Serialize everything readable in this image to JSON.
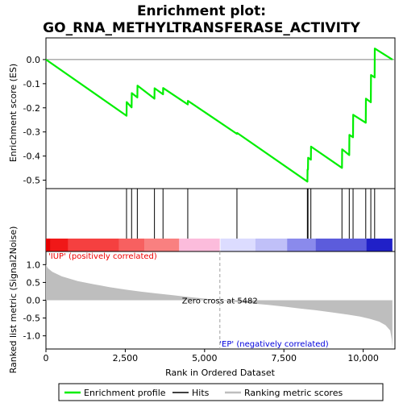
{
  "chart_data": {
    "type": "line",
    "title_line1": "Enrichment plot:",
    "title_line2": "GO_RNA_METHYLTRANSFERASE_ACTIVITY",
    "xlabel": "Rank in Ordered Dataset",
    "xlim": [
      0,
      11000
    ],
    "x_ticks": [
      0,
      2500,
      5000,
      7500,
      10000
    ],
    "x_tick_labels": [
      "0",
      "2,500",
      "5,000",
      "7,500",
      "10,000"
    ],
    "es_panel": {
      "ylabel": "Enrichment score (ES)",
      "ylim": [
        -0.535,
        0.09
      ],
      "y_ticks": [
        0.0,
        -0.1,
        -0.2,
        -0.3,
        -0.4,
        -0.5
      ],
      "y_tick_labels": [
        "0.0",
        "-0.1",
        "-0.2",
        "-0.3",
        "-0.4",
        "-0.5"
      ],
      "color": "#00ee00",
      "profile": [
        [
          0,
          0.0
        ],
        [
          2540,
          -0.233
        ],
        [
          2545,
          -0.176
        ],
        [
          2700,
          -0.198
        ],
        [
          2705,
          -0.139
        ],
        [
          2880,
          -0.157
        ],
        [
          2885,
          -0.108
        ],
        [
          3420,
          -0.162
        ],
        [
          3425,
          -0.119
        ],
        [
          3690,
          -0.144
        ],
        [
          3695,
          -0.118
        ],
        [
          4470,
          -0.186
        ],
        [
          4475,
          -0.171
        ],
        [
          6020,
          -0.308
        ],
        [
          6025,
          -0.304
        ],
        [
          8240,
          -0.506
        ],
        [
          8245,
          -0.456
        ],
        [
          8260,
          -0.456
        ],
        [
          8265,
          -0.407
        ],
        [
          8350,
          -0.415
        ],
        [
          8355,
          -0.361
        ],
        [
          9330,
          -0.449
        ],
        [
          9335,
          -0.372
        ],
        [
          9560,
          -0.396
        ],
        [
          9565,
          -0.312
        ],
        [
          9680,
          -0.322
        ],
        [
          9685,
          -0.229
        ],
        [
          10080,
          -0.262
        ],
        [
          10085,
          -0.162
        ],
        [
          10240,
          -0.177
        ],
        [
          10245,
          -0.064
        ],
        [
          10360,
          -0.074
        ],
        [
          10365,
          0.046
        ],
        [
          10920,
          0.0
        ]
      ]
    },
    "hits": [
      2540,
      2700,
      2880,
      3420,
      3690,
      4470,
      6020,
      8240,
      8260,
      8350,
      9330,
      9560,
      9680,
      10080,
      10240,
      10360
    ],
    "heatmap_stops": [
      {
        "rank": 0,
        "color": "#e60000"
      },
      {
        "rank": 150,
        "color": "#f01818"
      },
      {
        "rank": 700,
        "color": "#f54040"
      },
      {
        "rank": 2300,
        "color": "#f76060"
      },
      {
        "rank": 3100,
        "color": "#f98080"
      },
      {
        "rank": 4200,
        "color": "#fcbcdc"
      },
      {
        "rank": 5482,
        "color": "#ffffff"
      },
      {
        "rank": 5500,
        "color": "#dcdcff"
      },
      {
        "rank": 6600,
        "color": "#c0c0f8"
      },
      {
        "rank": 7600,
        "color": "#8a8aec"
      },
      {
        "rank": 8500,
        "color": "#5c5cdc"
      },
      {
        "rank": 10100,
        "color": "#2020c8"
      },
      {
        "rank": 10920,
        "color": "#0a0ab4"
      }
    ],
    "metric_panel": {
      "ylabel": "Ranked list metric (Signal2Noise)",
      "ylim": [
        -1.37,
        1.37
      ],
      "y_ticks": [
        1.0,
        0.5,
        0.0,
        -0.5,
        -1.0
      ],
      "y_tick_labels": [
        "1.0",
        "0.5",
        "0.0",
        "-0.5",
        "-1.0"
      ],
      "fill_color": "#bebebe",
      "curve": [
        [
          0,
          1.0
        ],
        [
          60,
          0.9
        ],
        [
          200,
          0.8
        ],
        [
          500,
          0.67
        ],
        [
          1000,
          0.54
        ],
        [
          1500,
          0.45
        ],
        [
          2000,
          0.37
        ],
        [
          2500,
          0.3
        ],
        [
          3000,
          0.24
        ],
        [
          3500,
          0.19
        ],
        [
          4000,
          0.14
        ],
        [
          4500,
          0.09
        ],
        [
          5000,
          0.045
        ],
        [
          5482,
          0.0
        ],
        [
          6000,
          -0.05
        ],
        [
          6500,
          -0.09
        ],
        [
          7000,
          -0.13
        ],
        [
          7500,
          -0.18
        ],
        [
          8000,
          -0.23
        ],
        [
          8500,
          -0.28
        ],
        [
          9000,
          -0.34
        ],
        [
          9500,
          -0.4
        ],
        [
          9900,
          -0.46
        ],
        [
          10200,
          -0.52
        ],
        [
          10500,
          -0.6
        ],
        [
          10700,
          -0.7
        ],
        [
          10850,
          -0.85
        ],
        [
          10900,
          -1.1
        ],
        [
          10920,
          -1.35
        ]
      ],
      "zero_cross_rank": 5482,
      "zero_cross_label": "Zero cross at 5482",
      "pos_label": "'IUP' (positively correlated)",
      "neg_label": "'EP' (negatively correlated)",
      "pos_label_color": "#ee0000",
      "neg_label_color": "#0000dd"
    },
    "legend": {
      "placement": "bottom",
      "items": [
        {
          "label": "Enrichment profile",
          "color": "#00ee00"
        },
        {
          "label": "Hits",
          "color": "#000000"
        },
        {
          "label": "Ranking metric scores",
          "color": "#bebebe"
        }
      ]
    }
  }
}
